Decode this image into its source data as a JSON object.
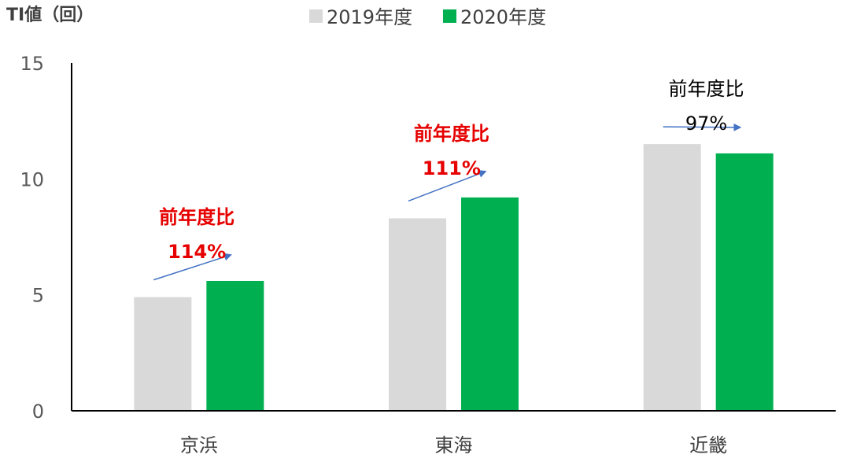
{
  "chart_data": {
    "type": "bar",
    "ylabel": "TI値（回）",
    "categories": [
      "京浜",
      "東海",
      "近畿"
    ],
    "series": [
      {
        "name": "2019年度",
        "values": [
          4.9,
          8.3,
          11.5
        ],
        "color": "#d9d9d9"
      },
      {
        "name": "2020年度",
        "values": [
          5.6,
          9.2,
          11.1
        ],
        "color": "#00b050"
      }
    ],
    "ylim": [
      0,
      15
    ],
    "yticks": [
      0,
      5,
      10,
      15
    ],
    "grid": false,
    "legend_position": "top",
    "annotations": [
      {
        "category": "京浜",
        "label": "前年度比",
        "value": "114%",
        "color": "#e60000",
        "bold": true
      },
      {
        "category": "東海",
        "label": "前年度比",
        "value": "111%",
        "color": "#e60000",
        "bold": true
      },
      {
        "category": "近畿",
        "label": "前年度比",
        "value": "97%",
        "color": "#000000",
        "bold": false
      }
    ],
    "arrow_color": "#4472c4"
  }
}
